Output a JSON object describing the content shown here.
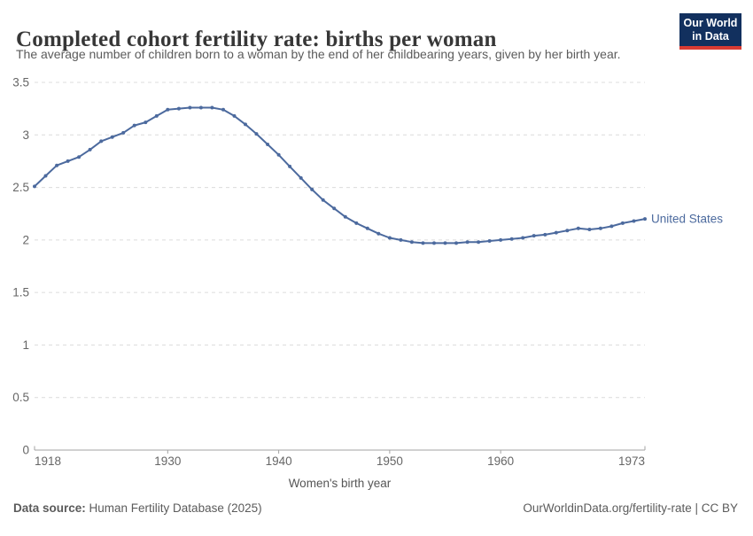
{
  "header": {
    "title": "Completed cohort fertility rate: births per woman",
    "subtitle": "The average number of children born to a woman by the end of her childbearing years, given by her birth year.",
    "logo": {
      "line1": "Our World",
      "line2": "in Data"
    }
  },
  "chart_data": {
    "type": "line",
    "title": "Completed cohort fertility rate: births per woman",
    "xlabel": "Women's birth year",
    "ylabel": "",
    "x": [
      1918,
      1919,
      1920,
      1921,
      1922,
      1923,
      1924,
      1925,
      1926,
      1927,
      1928,
      1929,
      1930,
      1931,
      1932,
      1933,
      1934,
      1935,
      1936,
      1937,
      1938,
      1939,
      1940,
      1941,
      1942,
      1943,
      1944,
      1945,
      1946,
      1947,
      1948,
      1949,
      1950,
      1951,
      1952,
      1953,
      1954,
      1955,
      1956,
      1957,
      1958,
      1959,
      1960,
      1961,
      1962,
      1963,
      1964,
      1965,
      1966,
      1967,
      1968,
      1969,
      1970,
      1971,
      1972,
      1973
    ],
    "series": [
      {
        "name": "United States",
        "color": "#4C6A9E",
        "values": [
          2.51,
          2.61,
          2.71,
          2.75,
          2.79,
          2.86,
          2.94,
          2.98,
          3.02,
          3.09,
          3.12,
          3.18,
          3.24,
          3.25,
          3.26,
          3.26,
          3.26,
          3.24,
          3.18,
          3.1,
          3.01,
          2.91,
          2.81,
          2.7,
          2.59,
          2.48,
          2.38,
          2.3,
          2.22,
          2.16,
          2.11,
          2.06,
          2.02,
          2.0,
          1.98,
          1.97,
          1.97,
          1.97,
          1.97,
          1.98,
          1.98,
          1.99,
          2.0,
          2.01,
          2.02,
          2.04,
          2.05,
          2.07,
          2.09,
          2.11,
          2.1,
          2.11,
          2.13,
          2.16,
          2.18,
          2.2
        ]
      }
    ],
    "xlim": [
      1918,
      1973
    ],
    "ylim": [
      0,
      3.5
    ],
    "yticks": [
      0,
      0.5,
      1,
      1.5,
      2,
      2.5,
      3,
      3.5
    ],
    "ytick_labels": [
      "0",
      "0.5",
      "1",
      "1.5",
      "2",
      "2.5",
      "3",
      "3.5"
    ],
    "xticks": [
      1918,
      1930,
      1940,
      1950,
      1960,
      1973
    ],
    "grid": "horizontal-dashed",
    "legend_position": "end-of-line-label"
  },
  "footer": {
    "datasource_label": "Data source:",
    "datasource_value": " Human Fertility Database (2025)",
    "link": "OurWorldinData.org/fertility-rate | CC BY"
  },
  "colors": {
    "line": "#4C6A9E",
    "entity_label": "#4C6A9E",
    "grid": "#DCDCDC",
    "axis": "#A3A3A3",
    "tick_text": "#666666",
    "axis_title_text": "#555555",
    "title": "#373737",
    "subtitle": "#5B5B5B",
    "footer": "#5B5B5B",
    "logo_bg": "#12305E",
    "logo_red": "#D93B33"
  }
}
